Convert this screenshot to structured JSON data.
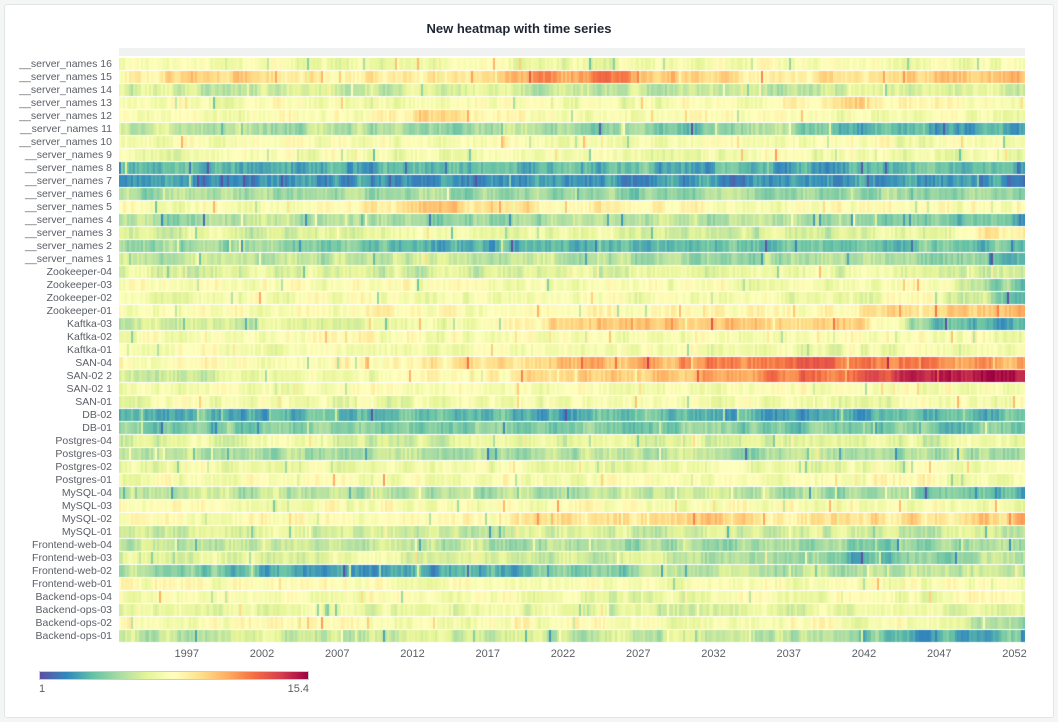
{
  "panel": {
    "title": "New heatmap with time series"
  },
  "chart_data": {
    "type": "heatmap",
    "title": "New heatmap with time series",
    "x_range": [
      1992.5,
      2052.7
    ],
    "x_ticks": [
      1997,
      2002,
      2007,
      2012,
      2017,
      2022,
      2027,
      2032,
      2037,
      2042,
      2047,
      2052
    ],
    "value_range": [
      1,
      15.4
    ],
    "legend": {
      "min_label": "1",
      "max_label": "15.4"
    },
    "colormap": [
      "#5e4fa2",
      "#3288bd",
      "#66c2a5",
      "#abdda4",
      "#e6f598",
      "#ffffbf",
      "#fee08b",
      "#fdae61",
      "#f46d43",
      "#d53e4f",
      "#9e0142"
    ],
    "rows": [
      {
        "label": "__server_names 16",
        "profile": [
          7.8,
          7.6,
          7.8,
          7.5,
          7.7,
          7.8,
          7.4,
          7.6,
          7.8,
          7.7,
          7.8,
          7.6
        ]
      },
      {
        "label": "__server_names 15",
        "profile": [
          8.5,
          10.5,
          9.0,
          8.8,
          9.2,
          11.5,
          11.8,
          9.5,
          9.0,
          9.3,
          9.8,
          10.2
        ]
      },
      {
        "label": "__server_names 14",
        "profile": [
          6.5,
          6.2,
          6.0,
          6.4,
          6.6,
          6.1,
          6.5,
          6.3,
          6.0,
          6.4,
          6.2,
          6.5
        ]
      },
      {
        "label": "__server_names 13",
        "profile": [
          7.8,
          7.6,
          7.9,
          7.3,
          7.8,
          7.9,
          7.5,
          7.8,
          8.2,
          9.6,
          7.9,
          7.8
        ]
      },
      {
        "label": "__server_names 12",
        "profile": [
          7.9,
          7.8,
          7.8,
          8.4,
          9.8,
          8.0,
          7.8,
          7.9,
          7.8,
          7.8,
          7.9,
          7.8
        ]
      },
      {
        "label": "__server_names 11",
        "profile": [
          6.0,
          5.8,
          5.6,
          5.9,
          5.2,
          5.6,
          5.0,
          4.6,
          5.4,
          3.8,
          3.2,
          3.8
        ]
      },
      {
        "label": "__server_names 10",
        "profile": [
          7.7,
          7.8,
          7.6,
          7.8,
          7.7,
          7.9,
          7.6,
          7.8,
          7.7,
          7.8,
          7.6,
          7.8
        ]
      },
      {
        "label": "__server_names 9",
        "profile": [
          7.5,
          7.4,
          7.6,
          7.5,
          7.3,
          7.6,
          7.5,
          7.4,
          7.6,
          7.5,
          7.4,
          7.5
        ]
      },
      {
        "label": "__server_names 8",
        "profile": [
          3.4,
          3.2,
          3.8,
          3.3,
          3.5,
          3.2,
          3.9,
          3.4,
          3.3,
          3.6,
          3.8,
          3.3
        ]
      },
      {
        "label": "__server_names 7",
        "profile": [
          2.8,
          2.6,
          3.0,
          2.7,
          2.9,
          2.6,
          2.8,
          3.0,
          2.7,
          2.8,
          2.6,
          2.9
        ]
      },
      {
        "label": "__server_names 6",
        "profile": [
          5.4,
          5.2,
          5.0,
          4.8,
          5.3,
          5.1,
          4.7,
          5.2,
          5.0,
          5.3,
          4.8,
          5.1
        ]
      },
      {
        "label": "__server_names 5",
        "profile": [
          8.0,
          7.9,
          8.1,
          8.8,
          9.9,
          9.6,
          8.2,
          8.0,
          7.9,
          8.0,
          8.1,
          8.0
        ]
      },
      {
        "label": "__server_names 4",
        "profile": [
          5.5,
          5.3,
          5.8,
          5.4,
          5.2,
          5.5,
          5.3,
          5.6,
          5.8,
          5.2,
          4.2,
          3.4
        ]
      },
      {
        "label": "__server_names 3",
        "profile": [
          6.4,
          6.8,
          6.2,
          6.5,
          6.9,
          6.7,
          6.8,
          6.6,
          6.3,
          6.8,
          7.2,
          9.4
        ]
      },
      {
        "label": "__server_names 2",
        "profile": [
          5.2,
          5.0,
          4.8,
          4.2,
          3.4,
          3.2,
          4.0,
          4.3,
          4.1,
          4.4,
          4.2,
          4.3
        ]
      },
      {
        "label": "__server_names 1",
        "profile": [
          6.0,
          5.8,
          5.4,
          5.9,
          5.7,
          6.0,
          5.6,
          5.3,
          5.5,
          5.2,
          4.8,
          3.2
        ]
      },
      {
        "label": "Zookeeper-04",
        "profile": [
          6.8,
          6.4,
          7.0,
          6.7,
          6.3,
          6.9,
          6.8,
          6.6,
          7.0,
          6.8,
          6.7,
          6.2
        ]
      },
      {
        "label": "Zookeeper-03",
        "profile": [
          7.8,
          7.9,
          7.7,
          7.8,
          7.9,
          7.8,
          7.7,
          7.9,
          7.8,
          7.8,
          7.9,
          4.0
        ]
      },
      {
        "label": "Zookeeper-02",
        "profile": [
          7.6,
          7.7,
          7.5,
          7.7,
          7.6,
          7.8,
          7.6,
          7.7,
          7.5,
          7.6,
          7.7,
          3.8
        ]
      },
      {
        "label": "Zookeeper-01",
        "profile": [
          8.0,
          8.1,
          7.9,
          8.3,
          8.0,
          8.1,
          8.0,
          8.2,
          8.1,
          8.6,
          9.8,
          11.0
        ]
      },
      {
        "label": "Kaftka-03",
        "profile": [
          6.0,
          6.2,
          6.6,
          7.0,
          7.6,
          8.8,
          10.0,
          10.6,
          10.2,
          9.4,
          3.8,
          3.0
        ]
      },
      {
        "label": "Kaftka-02",
        "profile": [
          7.9,
          7.8,
          8.0,
          7.9,
          7.8,
          8.0,
          7.9,
          7.8,
          7.9,
          8.0,
          7.8,
          7.9
        ]
      },
      {
        "label": "Kaftka-01",
        "profile": [
          7.5,
          7.6,
          7.4,
          7.6,
          7.5,
          7.7,
          7.5,
          7.6,
          7.4,
          7.5,
          7.6,
          7.5
        ]
      },
      {
        "label": "SAN-04",
        "profile": [
          8.2,
          8.0,
          8.3,
          8.6,
          9.0,
          9.8,
          10.6,
          11.4,
          12.2,
          12.8,
          12.0,
          11.2
        ]
      },
      {
        "label": "SAN-02 2",
        "profile": [
          6.2,
          6.6,
          7.2,
          7.8,
          8.4,
          9.2,
          10.0,
          11.0,
          12.0,
          13.2,
          14.2,
          15.0
        ]
      },
      {
        "label": "SAN-02 1",
        "profile": [
          7.8,
          7.9,
          7.7,
          7.9,
          7.8,
          8.0,
          7.8,
          7.9,
          7.7,
          7.8,
          7.9,
          7.8
        ]
      },
      {
        "label": "SAN-01",
        "profile": [
          7.6,
          7.5,
          7.7,
          7.4,
          7.6,
          7.7,
          7.5,
          7.6,
          7.7,
          7.5,
          7.6,
          7.5
        ]
      },
      {
        "label": "DB-02",
        "profile": [
          4.0,
          3.8,
          3.5,
          3.9,
          3.7,
          3.4,
          3.9,
          3.8,
          3.6,
          3.4,
          3.8,
          3.7
        ]
      },
      {
        "label": "DB-01",
        "profile": [
          4.6,
          4.4,
          4.8,
          4.3,
          4.6,
          4.4,
          4.7,
          4.5,
          4.3,
          4.6,
          4.4,
          4.5
        ]
      },
      {
        "label": "Postgres-04",
        "profile": [
          6.9,
          6.7,
          7.1,
          6.8,
          6.6,
          7.0,
          6.8,
          6.9,
          6.7,
          7.0,
          6.8,
          6.9
        ]
      },
      {
        "label": "Postgres-03",
        "profile": [
          5.8,
          5.5,
          5.2,
          5.7,
          5.4,
          5.6,
          5.9,
          5.5,
          5.3,
          5.7,
          5.6,
          5.8
        ]
      },
      {
        "label": "Postgres-02",
        "profile": [
          7.4,
          7.5,
          7.3,
          7.5,
          7.4,
          7.6,
          7.4,
          7.5,
          7.3,
          7.4,
          7.5,
          7.4
        ]
      },
      {
        "label": "Postgres-01",
        "profile": [
          7.9,
          7.8,
          8.0,
          7.8,
          7.9,
          8.0,
          7.8,
          7.9,
          7.8,
          8.0,
          7.9,
          7.8
        ]
      },
      {
        "label": "MySQL-04",
        "profile": [
          6.0,
          5.7,
          6.1,
          5.6,
          5.9,
          5.5,
          5.8,
          6.0,
          5.4,
          5.0,
          4.4,
          3.4
        ]
      },
      {
        "label": "MySQL-03",
        "profile": [
          7.8,
          7.9,
          7.7,
          7.9,
          7.8,
          8.0,
          7.8,
          7.9,
          7.7,
          7.8,
          7.9,
          7.8
        ]
      },
      {
        "label": "MySQL-02",
        "profile": [
          8.2,
          8.0,
          8.3,
          8.1,
          8.4,
          8.8,
          9.4,
          9.8,
          9.2,
          9.9,
          9.6,
          10.6
        ]
      },
      {
        "label": "MySQL-01",
        "profile": [
          6.4,
          6.2,
          6.6,
          6.3,
          6.5,
          6.2,
          6.6,
          6.4,
          6.3,
          6.5,
          6.4,
          6.2
        ]
      },
      {
        "label": "Frontend-web-04",
        "profile": [
          6.2,
          6.0,
          6.3,
          6.1,
          5.9,
          5.5,
          5.2,
          5.5,
          5.0,
          4.6,
          5.2,
          5.4
        ]
      },
      {
        "label": "Frontend-web-03",
        "profile": [
          7.0,
          6.8,
          7.1,
          6.9,
          6.7,
          6.4,
          6.6,
          6.2,
          5.4,
          3.6,
          4.4,
          6.0
        ]
      },
      {
        "label": "Frontend-web-02",
        "profile": [
          5.4,
          4.4,
          3.4,
          3.2,
          3.3,
          3.8,
          4.8,
          5.4,
          5.8,
          6.0,
          5.8,
          5.4
        ]
      },
      {
        "label": "Frontend-web-01",
        "profile": [
          7.8,
          7.7,
          7.9,
          7.8,
          7.7,
          7.9,
          7.8,
          7.7,
          7.9,
          7.8,
          7.7,
          7.8
        ]
      },
      {
        "label": "Backend-ops-04",
        "profile": [
          7.8,
          7.9,
          7.7,
          7.8,
          7.9,
          7.4,
          6.6,
          7.2,
          7.8,
          7.9,
          7.8,
          7.9
        ]
      },
      {
        "label": "Backend-ops-03",
        "profile": [
          7.0,
          6.8,
          7.2,
          6.9,
          6.7,
          7.1,
          6.8,
          6.6,
          7.0,
          6.9,
          7.1,
          6.8
        ]
      },
      {
        "label": "Backend-ops-02",
        "profile": [
          7.9,
          7.8,
          8.0,
          7.9,
          7.8,
          7.9,
          8.0,
          7.8,
          7.9,
          7.8,
          7.9,
          4.2
        ]
      },
      {
        "label": "Backend-ops-01",
        "profile": [
          6.2,
          6.0,
          6.4,
          6.1,
          6.3,
          6.0,
          6.2,
          6.1,
          6.0,
          4.4,
          3.4,
          4.0
        ]
      }
    ]
  }
}
